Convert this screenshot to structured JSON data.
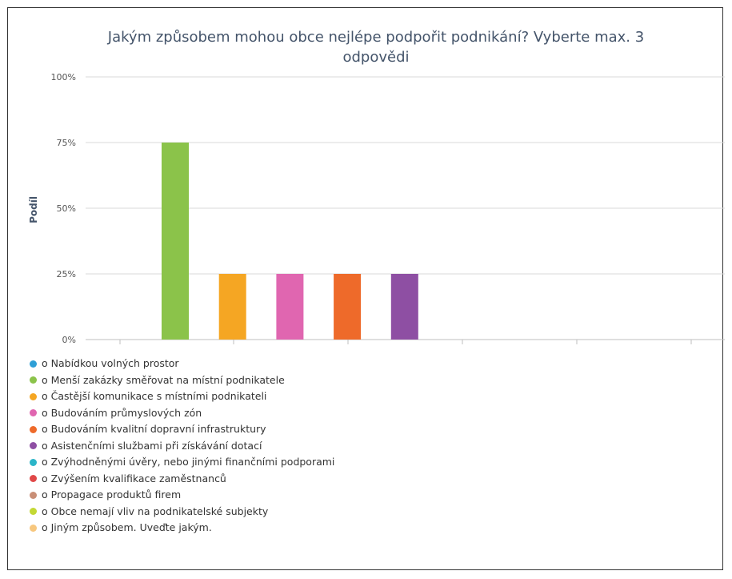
{
  "chart_data": {
    "type": "bar",
    "title": "Jakým způsobem mohou obce nejlépe podpořit podnikání? Vyberte max. 3 odpovědi",
    "title_lines": [
      "Jakým způsobem mohou obce nejlépe podpořit podnikání? Vyberte max. 3",
      "odpovědi"
    ],
    "ylabel": "Podíl",
    "xlabel": "",
    "ylim": [
      0,
      100
    ],
    "yticks": [
      "0%",
      "25%",
      "50%",
      "75%",
      "100%"
    ],
    "ytick_values": [
      0,
      25,
      50,
      75,
      100
    ],
    "grid": true,
    "legend_position": "bottom",
    "series": [
      {
        "name": "o Nabídkou volných prostor",
        "value": 0,
        "color": "#2e9fd6"
      },
      {
        "name": "o Menší zakázky směřovat na místní podnikatele",
        "value": 75,
        "color": "#8bc34a"
      },
      {
        "name": "o Častější komunikace s místními podnikateli",
        "value": 25,
        "color": "#f5a623"
      },
      {
        "name": "o Budováním průmyslových zón",
        "value": 25,
        "color": "#e066b0"
      },
      {
        "name": "o Budováním kvalitní dopravní infrastruktury",
        "value": 25,
        "color": "#ee6a2a"
      },
      {
        "name": "o Asistenčními službami při získávání dotací",
        "value": 25,
        "color": "#8e4fa3"
      },
      {
        "name": "o Zvýhodněnými úvěry, nebo jinými finančními podporami",
        "value": 0,
        "color": "#2bb5c8"
      },
      {
        "name": "o Zvýšením kvalifikace zaměstnanců",
        "value": 0,
        "color": "#e04848"
      },
      {
        "name": "o Propagace produktů firem",
        "value": 0,
        "color": "#c98f77"
      },
      {
        "name": "o Obce nemají vliv na podnikatelské subjekty",
        "value": 0,
        "color": "#c3d834"
      },
      {
        "name": "o Jiným způsobem. Uveďte jakým.",
        "value": 0,
        "color": "#f7c77e"
      }
    ]
  }
}
